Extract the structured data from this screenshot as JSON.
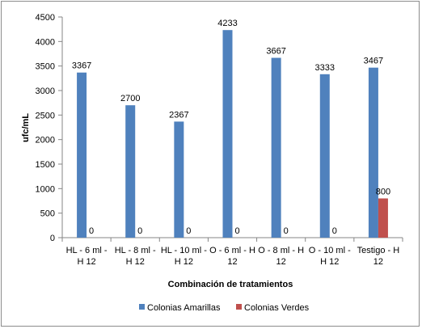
{
  "chart_data": {
    "type": "bar",
    "title": "",
    "xlabel": "Combinación de tratamientos",
    "ylabel": "ufc/mL",
    "ylim": [
      0,
      4500
    ],
    "yticks": [
      0,
      500,
      1000,
      1500,
      2000,
      2500,
      3000,
      3500,
      4000,
      4500
    ],
    "grid": false,
    "legend_position": "bottom",
    "categories": [
      [
        "HL - 6 ml -",
        "H 12"
      ],
      [
        "HL - 8 ml -",
        "H 12"
      ],
      [
        "HL - 10 ml -",
        "H 12"
      ],
      [
        "O - 6 ml - H",
        "12"
      ],
      [
        "O - 8 ml - H",
        "12"
      ],
      [
        "O - 10 ml -",
        "H 12"
      ],
      [
        "Testigo - H",
        "12"
      ]
    ],
    "series": [
      {
        "name": "Colonias Amarillas",
        "color": "#4f81bd",
        "values": [
          3367,
          2700,
          2367,
          4233,
          3667,
          3333,
          3467
        ]
      },
      {
        "name": "Colonias Verdes",
        "color": "#c0504d",
        "values": [
          0,
          0,
          0,
          0,
          0,
          0,
          800
        ]
      }
    ]
  }
}
